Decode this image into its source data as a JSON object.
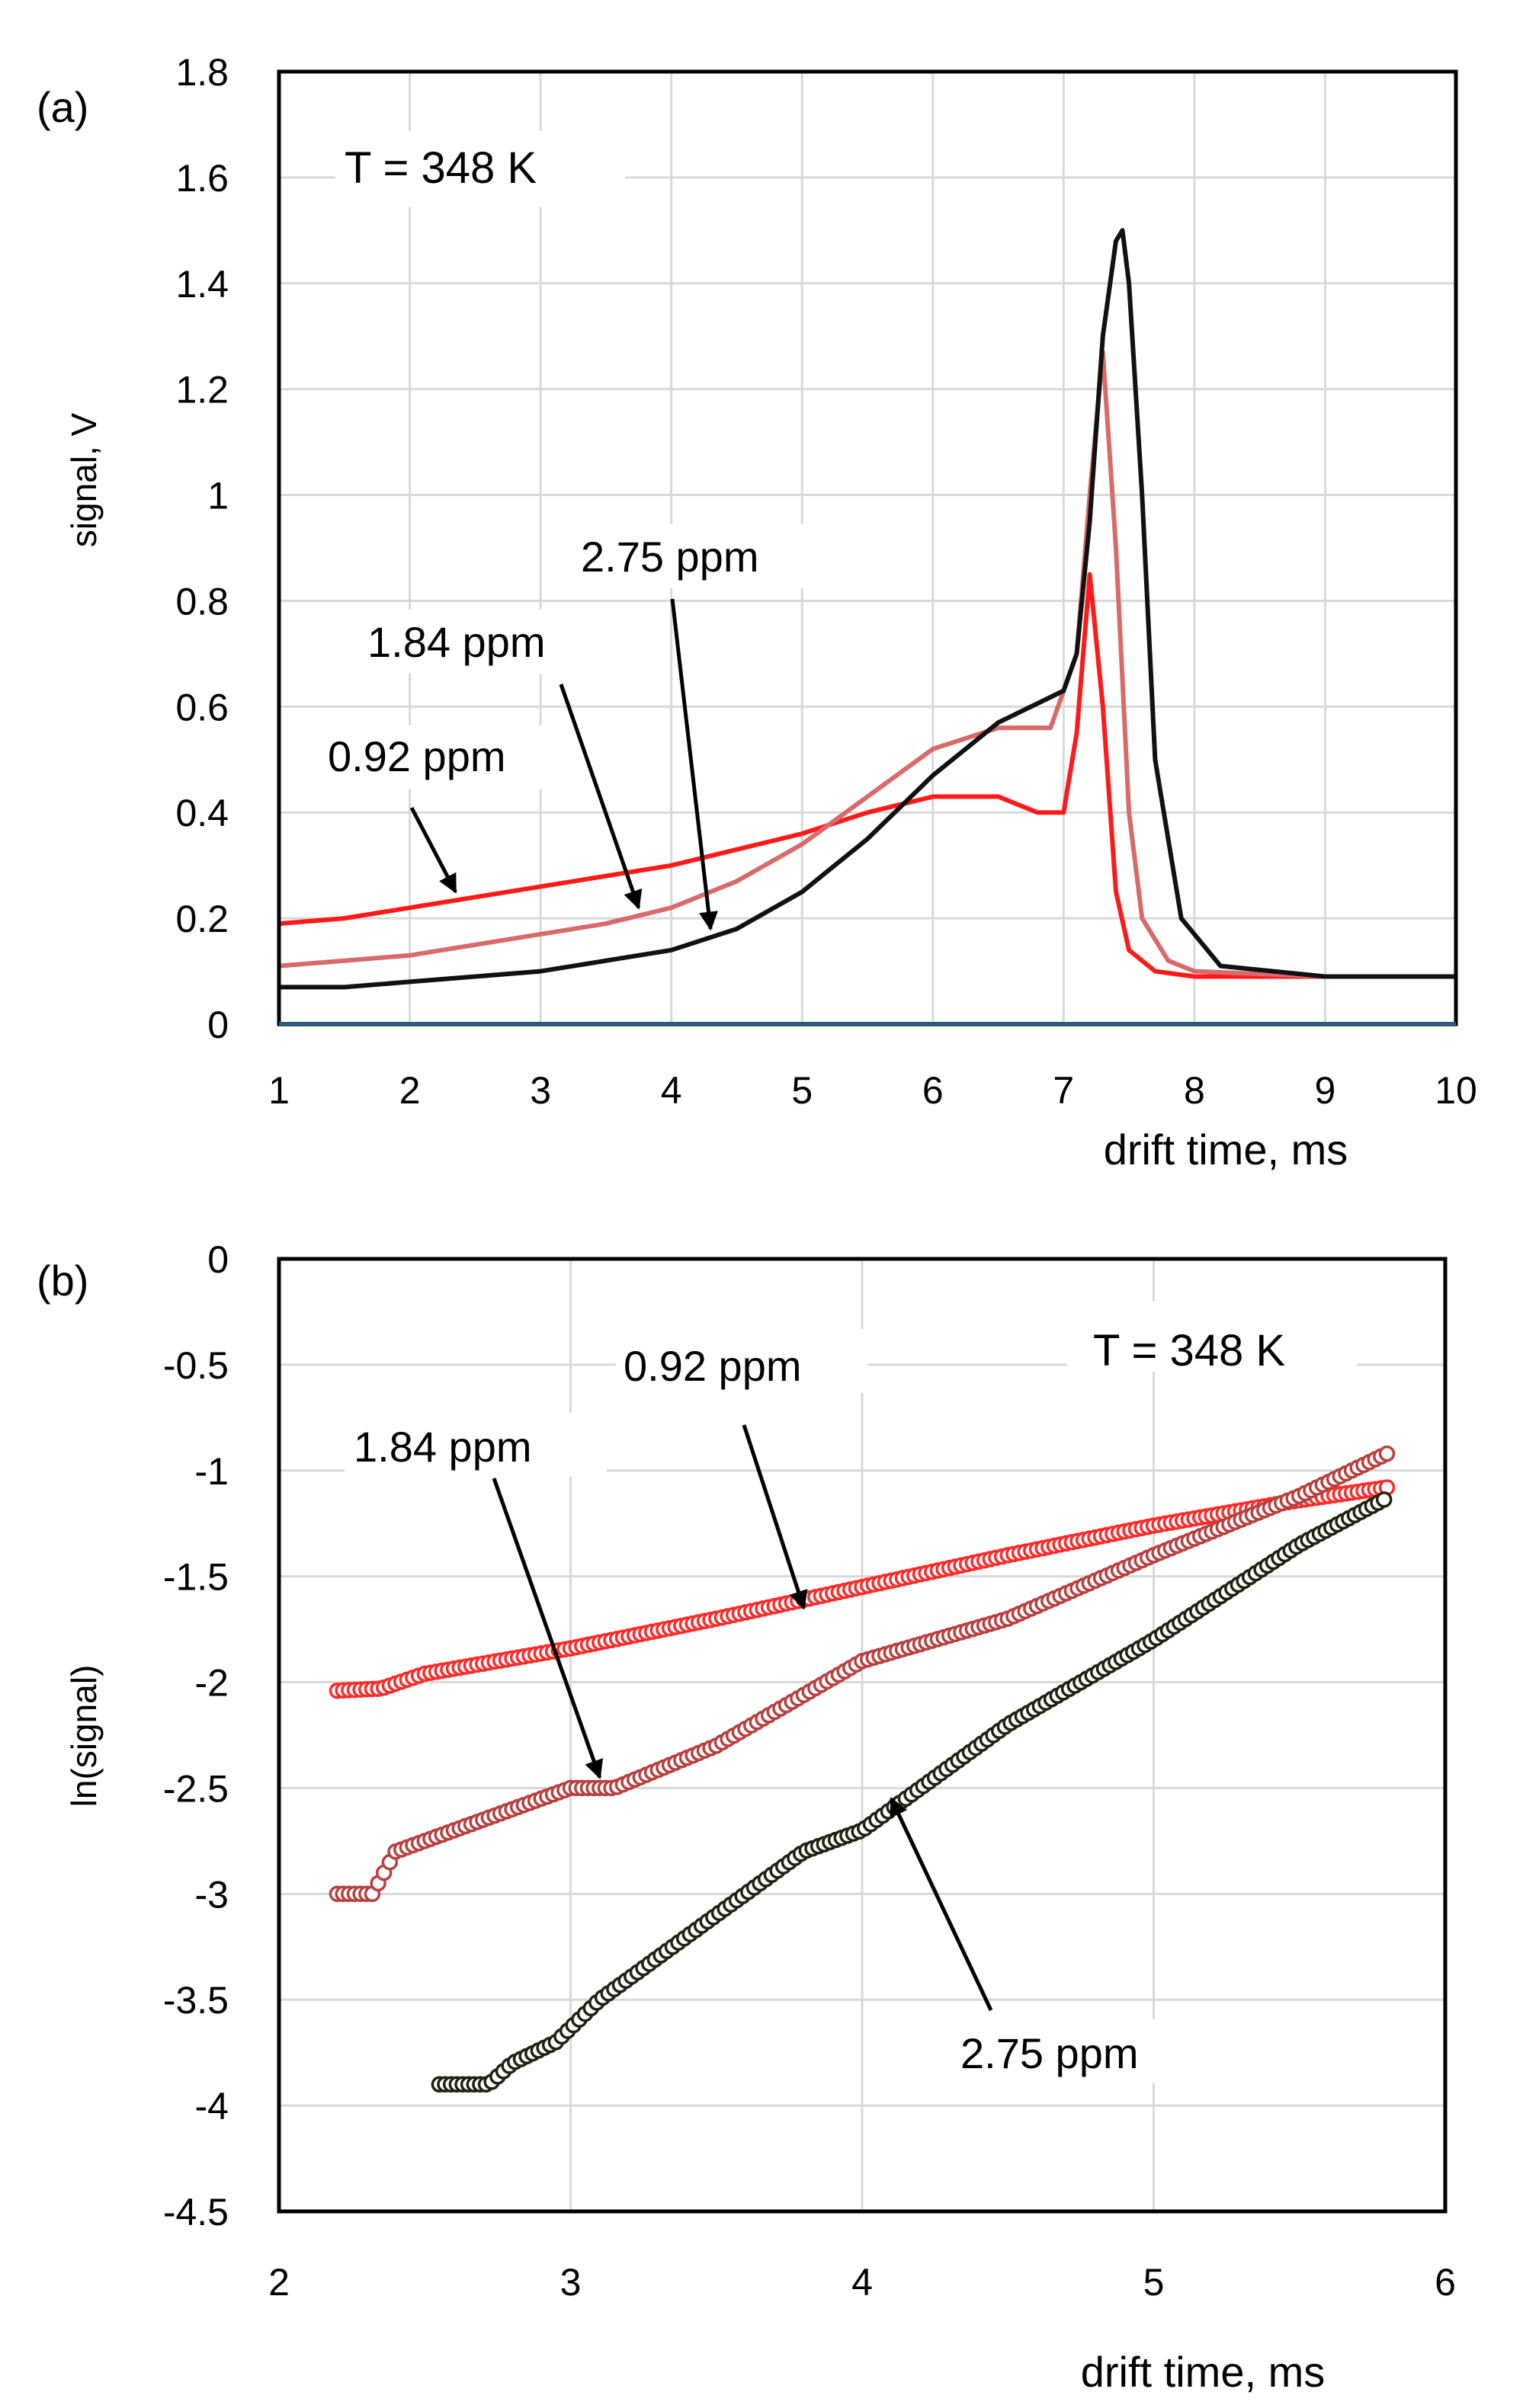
{
  "chart_data": [
    {
      "panel_label": "(a)",
      "type": "line",
      "xlabel": "drift time, ms",
      "ylabel": "signal, V",
      "xlim": [
        1,
        10
      ],
      "ylim": [
        0,
        1.8
      ],
      "xticks": [
        "1",
        "2",
        "3",
        "4",
        "5",
        "6",
        "7",
        "8",
        "9",
        "10"
      ],
      "yticks": [
        "0",
        "0.2",
        "0.4",
        "0.6",
        "0.8",
        "1",
        "1.2",
        "1.4",
        "1.6",
        "1.8"
      ],
      "grid": true,
      "annotations": [
        {
          "text": "T = 348 K"
        },
        {
          "text": "0.92 ppm",
          "points_to": [
            2.35,
            0.25
          ]
        },
        {
          "text": "1.84 ppm",
          "points_to": [
            3.75,
            0.22
          ]
        },
        {
          "text": "2.75 ppm",
          "points_to": [
            4.3,
            0.18
          ]
        }
      ],
      "series": [
        {
          "name": "0.92 ppm",
          "color": "#ff1a1a",
          "x": [
            1,
            1.5,
            2,
            2.5,
            3,
            3.5,
            4,
            4.5,
            5,
            5.5,
            6,
            6.5,
            6.8,
            7.0,
            7.1,
            7.2,
            7.3,
            7.4,
            7.5,
            7.7,
            8,
            9,
            10
          ],
          "y": [
            0.19,
            0.2,
            0.22,
            0.24,
            0.26,
            0.28,
            0.3,
            0.33,
            0.36,
            0.4,
            0.43,
            0.43,
            0.4,
            0.4,
            0.55,
            0.85,
            0.6,
            0.25,
            0.14,
            0.1,
            0.09,
            0.09,
            0.09
          ]
        },
        {
          "name": "1.84 ppm",
          "color": "#d86a6a",
          "x": [
            1,
            1.5,
            2,
            2.5,
            3,
            3.5,
            4,
            4.5,
            5,
            5.5,
            6,
            6.5,
            6.9,
            7.1,
            7.2,
            7.3,
            7.4,
            7.5,
            7.6,
            7.8,
            8,
            9,
            10
          ],
          "y": [
            0.11,
            0.12,
            0.13,
            0.15,
            0.17,
            0.19,
            0.22,
            0.27,
            0.34,
            0.43,
            0.52,
            0.56,
            0.56,
            0.7,
            1.0,
            1.27,
            0.9,
            0.4,
            0.2,
            0.12,
            0.1,
            0.09,
            0.09
          ]
        },
        {
          "name": "2.75 ppm",
          "color": "#111111",
          "x": [
            1,
            1.5,
            2,
            2.5,
            3,
            3.5,
            4,
            4.5,
            5,
            5.5,
            6,
            6.5,
            7,
            7.1,
            7.2,
            7.3,
            7.4,
            7.45,
            7.5,
            7.6,
            7.7,
            7.9,
            8.2,
            9,
            10
          ],
          "y": [
            0.07,
            0.07,
            0.08,
            0.09,
            0.1,
            0.12,
            0.14,
            0.18,
            0.25,
            0.35,
            0.47,
            0.57,
            0.63,
            0.7,
            0.95,
            1.3,
            1.48,
            1.5,
            1.4,
            1.0,
            0.5,
            0.2,
            0.11,
            0.09,
            0.09
          ]
        }
      ]
    },
    {
      "panel_label": "(b)",
      "type": "scatter",
      "xlabel": "drift time, ms",
      "ylabel": "ln(signal)",
      "xlim": [
        2,
        6
      ],
      "ylim": [
        -4.5,
        0
      ],
      "xticks": [
        "2",
        "3",
        "4",
        "5",
        "6"
      ],
      "yticks": [
        "0",
        "-0.5",
        "-1",
        "-1.5",
        "-2",
        "-2.5",
        "-3",
        "-3.5",
        "-4",
        "-4.5"
      ],
      "grid": true,
      "annotations": [
        {
          "text": "T = 348 K"
        },
        {
          "text": "0.92 ppm",
          "points_to": [
            3.8,
            -1.65
          ]
        },
        {
          "text": "1.84 ppm",
          "points_to": [
            3.1,
            -2.45
          ]
        },
        {
          "text": "2.75 ppm",
          "points_to": [
            4.1,
            -2.55
          ]
        }
      ],
      "series": [
        {
          "name": "0.92 ppm",
          "marker_color": "#ff2a2a",
          "x_range": [
            2.2,
            5.8
          ],
          "y_at": {
            "x": [
              2.2,
              2.35,
              2.5,
              3.0,
              3.5,
              4.0,
              4.5,
              5.0,
              5.5,
              5.8
            ],
            "y": [
              -2.04,
              -2.03,
              -1.96,
              -1.84,
              -1.7,
              -1.55,
              -1.4,
              -1.26,
              -1.14,
              -1.08
            ]
          }
        },
        {
          "name": "1.84 ppm",
          "marker_color": "#b84040",
          "x_range": [
            2.2,
            5.8
          ],
          "y_at": {
            "x": [
              2.2,
              2.32,
              2.4,
              2.6,
              3.0,
              3.15,
              3.5,
              4.0,
              4.5,
              5.0,
              5.5,
              5.8
            ],
            "y": [
              -3.0,
              -3.0,
              -2.8,
              -2.7,
              -2.5,
              -2.5,
              -2.3,
              -1.9,
              -1.7,
              -1.4,
              -1.12,
              -0.92
            ]
          }
        },
        {
          "name": "2.75 ppm",
          "marker_color": "#222211",
          "x_range": [
            2.55,
            5.8
          ],
          "y_at": {
            "x": [
              2.55,
              2.72,
              2.8,
              2.95,
              3.1,
              3.3,
              3.5,
              3.8,
              4.0,
              4.5,
              5.0,
              5.5,
              5.8
            ],
            "y": [
              -3.9,
              -3.9,
              -3.8,
              -3.7,
              -3.5,
              -3.3,
              -3.1,
              -2.8,
              -2.7,
              -2.2,
              -1.8,
              -1.35,
              -1.13
            ]
          }
        }
      ]
    }
  ]
}
